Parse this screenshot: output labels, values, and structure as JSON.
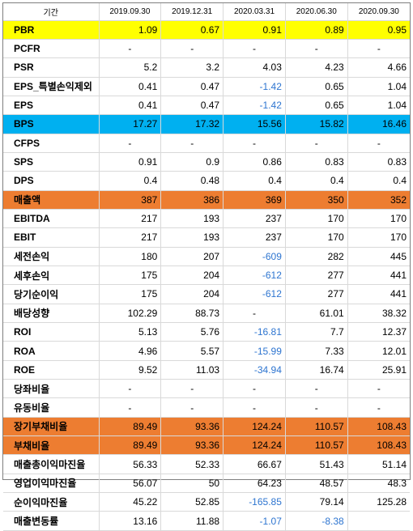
{
  "header": {
    "label": "기간",
    "periods": [
      "2019.09.30",
      "2019.12.31",
      "2020.03.31",
      "2020.06.30",
      "2020.09.30"
    ]
  },
  "colors": {
    "yellow_row": "#ffff00",
    "blue_row": "#00b0f0",
    "orange_row": "#ed7d31",
    "negative_text": "#2e75d0"
  },
  "rows": [
    {
      "label": "PBR",
      "values": [
        "1.09",
        "0.67",
        "0.91",
        "0.89",
        "0.95"
      ],
      "highlight": "yellow"
    },
    {
      "label": "PCFR",
      "values": [
        "-",
        "-",
        "-",
        "-",
        "-"
      ]
    },
    {
      "label": "PSR",
      "values": [
        "5.2",
        "3.2",
        "4.03",
        "4.23",
        "4.66"
      ]
    },
    {
      "label": "EPS_특별손익제외",
      "values": [
        "0.41",
        "0.47",
        "-1.42",
        "0.65",
        "1.04"
      ]
    },
    {
      "label": "EPS",
      "values": [
        "0.41",
        "0.47",
        "-1.42",
        "0.65",
        "1.04"
      ]
    },
    {
      "label": "BPS",
      "values": [
        "17.27",
        "17.32",
        "15.56",
        "15.82",
        "16.46"
      ],
      "highlight": "blue"
    },
    {
      "label": "CFPS",
      "values": [
        "-",
        "-",
        "-",
        "-",
        "-"
      ]
    },
    {
      "label": "SPS",
      "values": [
        "0.91",
        "0.9",
        "0.86",
        "0.83",
        "0.83"
      ]
    },
    {
      "label": "DPS",
      "values": [
        "0.4",
        "0.48",
        "0.4",
        "0.4",
        "0.4"
      ]
    },
    {
      "label": "매출액",
      "values": [
        "387",
        "386",
        "369",
        "350",
        "352"
      ],
      "highlight": "orange"
    },
    {
      "label": "EBITDA",
      "values": [
        "217",
        "193",
        "237",
        "170",
        "170"
      ]
    },
    {
      "label": "EBIT",
      "values": [
        "217",
        "193",
        "237",
        "170",
        "170"
      ]
    },
    {
      "label": "세전손익",
      "values": [
        "180",
        "207",
        "-609",
        "282",
        "445"
      ]
    },
    {
      "label": "세후손익",
      "values": [
        "175",
        "204",
        "-612",
        "277",
        "441"
      ]
    },
    {
      "label": "당기순이익",
      "values": [
        "175",
        "204",
        "-612",
        "277",
        "441"
      ]
    },
    {
      "label": "배당성향",
      "values": [
        "102.29",
        "88.73",
        "-",
        "61.01",
        "38.32"
      ],
      "separator": true
    },
    {
      "label": "ROI",
      "values": [
        "5.13",
        "5.76",
        "-16.81",
        "7.7",
        "12.37"
      ]
    },
    {
      "label": "ROA",
      "values": [
        "4.96",
        "5.57",
        "-15.99",
        "7.33",
        "12.01"
      ]
    },
    {
      "label": "ROE",
      "values": [
        "9.52",
        "11.03",
        "-34.94",
        "16.74",
        "25.91"
      ]
    },
    {
      "label": "당좌비율",
      "values": [
        "-",
        "-",
        "-",
        "-",
        "-"
      ]
    },
    {
      "label": "유동비율",
      "values": [
        "-",
        "-",
        "-",
        "-",
        "-"
      ]
    },
    {
      "label": "장기부채비율",
      "values": [
        "89.49",
        "93.36",
        "124.24",
        "110.57",
        "108.43"
      ],
      "highlight": "orange"
    },
    {
      "label": "부채비율",
      "values": [
        "89.49",
        "93.36",
        "124.24",
        "110.57",
        "108.43"
      ],
      "highlight": "orange"
    },
    {
      "label": "매출총이익마진율",
      "values": [
        "56.33",
        "52.33",
        "66.67",
        "51.43",
        "51.14"
      ]
    },
    {
      "label": "영업이익마진율",
      "values": [
        "56.07",
        "50",
        "64.23",
        "48.57",
        "48.3"
      ]
    },
    {
      "label": "순이익마진율",
      "values": [
        "45.22",
        "52.85",
        "-165.85",
        "79.14",
        "125.28"
      ],
      "separator": true
    },
    {
      "label": "매출변동률",
      "values": [
        "13.16",
        "11.88",
        "-1.07",
        "-8.38",
        ""
      ]
    }
  ]
}
